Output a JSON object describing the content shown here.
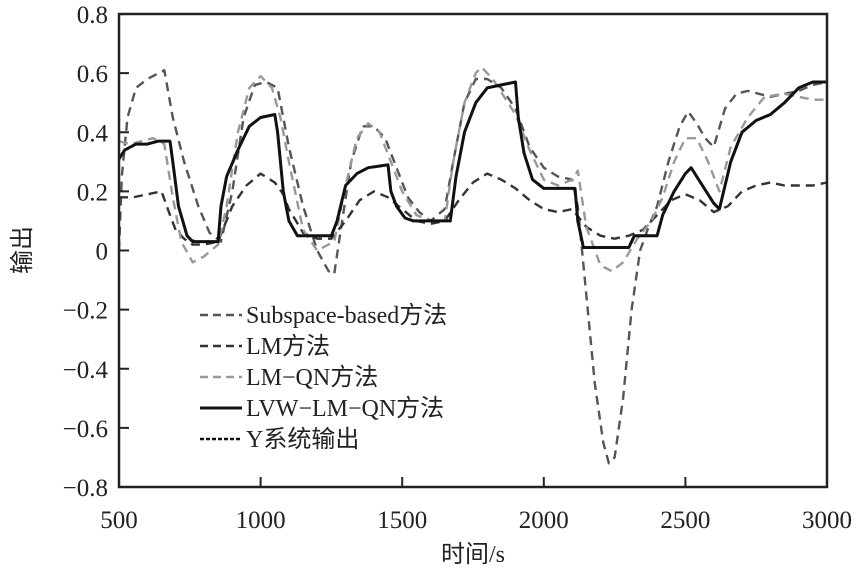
{
  "chart_data": {
    "type": "line",
    "title": "",
    "xlabel": "时间/s",
    "ylabel": "输出",
    "xlim": [
      500,
      3000
    ],
    "ylim": [
      -0.8,
      0.8
    ],
    "xticks": [
      500,
      1000,
      1500,
      2000,
      2500,
      3000
    ],
    "xtick_labels": [
      "500",
      "1000",
      "1500",
      "2000",
      "2500",
      "3000"
    ],
    "yticks": [
      0.8,
      0.6,
      0.4,
      0.2,
      0,
      -0.2,
      -0.4,
      -0.6,
      -0.8
    ],
    "ytick_labels": [
      "0.8",
      "0.6",
      "0.4",
      "0.2",
      "0",
      "−0.2",
      "−0.4",
      "−0.6",
      "−0.8"
    ],
    "grid": false,
    "legend_position": "bottom-left",
    "series": [
      {
        "name": "Subspace-based方法",
        "legend_label": "Subspace-based方法",
        "style": "dashed",
        "color": "#555555",
        "x": [
          500,
          510,
          530,
          560,
          600,
          640,
          660,
          690,
          730,
          780,
          820,
          860,
          900,
          940,
          980,
          1020,
          1060,
          1100,
          1150,
          1200,
          1240,
          1260,
          1280,
          1320,
          1360,
          1400,
          1440,
          1480,
          1520,
          1560,
          1600,
          1650,
          1680,
          1720,
          1760,
          1800,
          1850,
          1900,
          1950,
          2000,
          2050,
          2100,
          2120,
          2150,
          2180,
          2210,
          2230,
          2250,
          2280,
          2310,
          2340,
          2370,
          2400,
          2440,
          2480,
          2510,
          2540,
          2570,
          2600,
          2640,
          2680,
          2720,
          2760,
          2800,
          2850,
          2900,
          2950,
          3000
        ],
        "y": [
          0.0,
          0.25,
          0.45,
          0.55,
          0.58,
          0.6,
          0.61,
          0.45,
          0.3,
          0.15,
          0.06,
          0.03,
          0.2,
          0.45,
          0.56,
          0.57,
          0.55,
          0.35,
          0.15,
          0.0,
          -0.07,
          -0.08,
          0.05,
          0.3,
          0.42,
          0.42,
          0.38,
          0.28,
          0.18,
          0.13,
          0.1,
          0.14,
          0.3,
          0.5,
          0.58,
          0.58,
          0.55,
          0.48,
          0.35,
          0.28,
          0.25,
          0.24,
          0.15,
          -0.15,
          -0.45,
          -0.65,
          -0.72,
          -0.7,
          -0.5,
          -0.2,
          0.0,
          0.08,
          0.15,
          0.3,
          0.42,
          0.47,
          0.43,
          0.38,
          0.35,
          0.48,
          0.53,
          0.54,
          0.53,
          0.52,
          0.53,
          0.54,
          0.56,
          0.57
        ]
      },
      {
        "name": "LM方法",
        "legend_label": "LM方法",
        "style": "dashed",
        "color": "#333333",
        "x": [
          500,
          550,
          600,
          650,
          680,
          700,
          730,
          760,
          800,
          850,
          900,
          950,
          1000,
          1050,
          1080,
          1100,
          1150,
          1200,
          1250,
          1300,
          1350,
          1400,
          1450,
          1500,
          1550,
          1600,
          1650,
          1700,
          1750,
          1800,
          1850,
          1900,
          1950,
          2000,
          2050,
          2100,
          2150,
          2200,
          2250,
          2300,
          2350,
          2400,
          2450,
          2500,
          2550,
          2600,
          2650,
          2700,
          2750,
          2800,
          2850,
          2900,
          2950,
          3000
        ],
        "y": [
          0.18,
          0.18,
          0.19,
          0.2,
          0.12,
          0.07,
          0.04,
          0.02,
          0.02,
          0.03,
          0.15,
          0.22,
          0.26,
          0.23,
          0.19,
          0.14,
          0.06,
          0.04,
          0.04,
          0.1,
          0.17,
          0.2,
          0.18,
          0.14,
          0.1,
          0.09,
          0.1,
          0.17,
          0.23,
          0.26,
          0.24,
          0.21,
          0.17,
          0.14,
          0.13,
          0.14,
          0.08,
          0.05,
          0.04,
          0.05,
          0.07,
          0.12,
          0.17,
          0.19,
          0.17,
          0.13,
          0.15,
          0.2,
          0.22,
          0.23,
          0.22,
          0.22,
          0.22,
          0.23
        ]
      },
      {
        "name": "LM-QN方法",
        "legend_label": "LM−QN方法",
        "style": "dashed",
        "color": "#999999",
        "x": [
          500,
          540,
          580,
          620,
          660,
          690,
          720,
          760,
          800,
          850,
          880,
          920,
          960,
          1000,
          1040,
          1070,
          1100,
          1150,
          1200,
          1260,
          1300,
          1340,
          1380,
          1420,
          1460,
          1500,
          1550,
          1600,
          1650,
          1680,
          1720,
          1760,
          1780,
          1820,
          1860,
          1900,
          1950,
          2000,
          2050,
          2100,
          2120,
          2150,
          2200,
          2240,
          2280,
          2330,
          2380,
          2420,
          2460,
          2500,
          2540,
          2580,
          2620,
          2660,
          2720,
          2780,
          2850,
          2900,
          2950,
          3000
        ],
        "y": [
          0.37,
          0.36,
          0.37,
          0.38,
          0.36,
          0.18,
          0.03,
          -0.04,
          -0.02,
          0.02,
          0.15,
          0.4,
          0.55,
          0.59,
          0.55,
          0.45,
          0.3,
          0.07,
          0.0,
          0.03,
          0.22,
          0.38,
          0.43,
          0.4,
          0.3,
          0.2,
          0.12,
          0.1,
          0.1,
          0.3,
          0.5,
          0.6,
          0.62,
          0.58,
          0.52,
          0.46,
          0.34,
          0.24,
          0.22,
          0.24,
          0.27,
          0.08,
          -0.05,
          -0.07,
          -0.04,
          0.04,
          0.1,
          0.18,
          0.3,
          0.38,
          0.38,
          0.3,
          0.2,
          0.35,
          0.45,
          0.52,
          0.53,
          0.52,
          0.51,
          0.51
        ]
      },
      {
        "name": "LVW-LM-QN方法",
        "legend_label": "LVW−LM−QN方法",
        "style": "solid",
        "color": "#111111",
        "x": [
          500,
          520,
          560,
          600,
          640,
          680,
          690,
          710,
          740,
          760,
          800,
          850,
          860,
          880,
          920,
          960,
          1000,
          1050,
          1060,
          1080,
          1100,
          1130,
          1180,
          1250,
          1270,
          1300,
          1340,
          1380,
          1450,
          1460,
          1480,
          1510,
          1540,
          1600,
          1670,
          1690,
          1720,
          1760,
          1800,
          1850,
          1900,
          1910,
          1930,
          1960,
          2000,
          2050,
          2110,
          2120,
          2140,
          2200,
          2300,
          2320,
          2400,
          2420,
          2460,
          2500,
          2520,
          2560,
          2600,
          2620,
          2660,
          2700,
          2750,
          2800,
          2850,
          2900,
          2950,
          3000
        ],
        "y": [
          0.31,
          0.34,
          0.36,
          0.36,
          0.37,
          0.37,
          0.3,
          0.15,
          0.05,
          0.03,
          0.03,
          0.03,
          0.15,
          0.25,
          0.34,
          0.42,
          0.45,
          0.46,
          0.4,
          0.2,
          0.1,
          0.05,
          0.05,
          0.05,
          0.1,
          0.22,
          0.26,
          0.28,
          0.29,
          0.2,
          0.15,
          0.11,
          0.1,
          0.1,
          0.1,
          0.25,
          0.4,
          0.5,
          0.55,
          0.56,
          0.57,
          0.45,
          0.33,
          0.24,
          0.21,
          0.21,
          0.21,
          0.1,
          0.01,
          0.01,
          0.01,
          0.05,
          0.05,
          0.12,
          0.2,
          0.26,
          0.28,
          0.22,
          0.16,
          0.14,
          0.3,
          0.4,
          0.44,
          0.46,
          0.5,
          0.55,
          0.57,
          0.57
        ]
      },
      {
        "name": "Y系统输出",
        "legend_label": "Y系统输出",
        "style": "dashdot",
        "color": "#111111",
        "x": [
          500,
          520,
          560,
          600,
          640,
          680,
          690,
          710,
          740,
          770,
          800,
          850,
          860,
          880,
          920,
          960,
          1000,
          1050,
          1060,
          1080,
          1100,
          1130,
          1180,
          1250,
          1270,
          1300,
          1340,
          1380,
          1450,
          1460,
          1480,
          1510,
          1540,
          1600,
          1670,
          1690,
          1720,
          1760,
          1800,
          1850,
          1900,
          1910,
          1930,
          1960,
          2000,
          2050,
          2110,
          2120,
          2140,
          2200,
          2300,
          2320,
          2400,
          2420,
          2460,
          2500,
          2520,
          2560,
          2600,
          2620,
          2660,
          2700,
          2750,
          2800,
          2850,
          2900,
          2950,
          3000
        ],
        "y": [
          0.31,
          0.34,
          0.36,
          0.36,
          0.37,
          0.37,
          0.3,
          0.15,
          0.05,
          0.03,
          0.03,
          0.03,
          0.15,
          0.25,
          0.34,
          0.42,
          0.45,
          0.46,
          0.4,
          0.2,
          0.1,
          0.05,
          0.05,
          0.05,
          0.1,
          0.22,
          0.26,
          0.28,
          0.29,
          0.2,
          0.15,
          0.11,
          0.1,
          0.1,
          0.1,
          0.25,
          0.4,
          0.5,
          0.55,
          0.56,
          0.57,
          0.45,
          0.33,
          0.24,
          0.21,
          0.21,
          0.21,
          0.1,
          0.01,
          0.01,
          0.01,
          0.05,
          0.05,
          0.12,
          0.2,
          0.26,
          0.28,
          0.22,
          0.16,
          0.14,
          0.3,
          0.4,
          0.44,
          0.46,
          0.5,
          0.55,
          0.57,
          0.57
        ]
      }
    ]
  }
}
